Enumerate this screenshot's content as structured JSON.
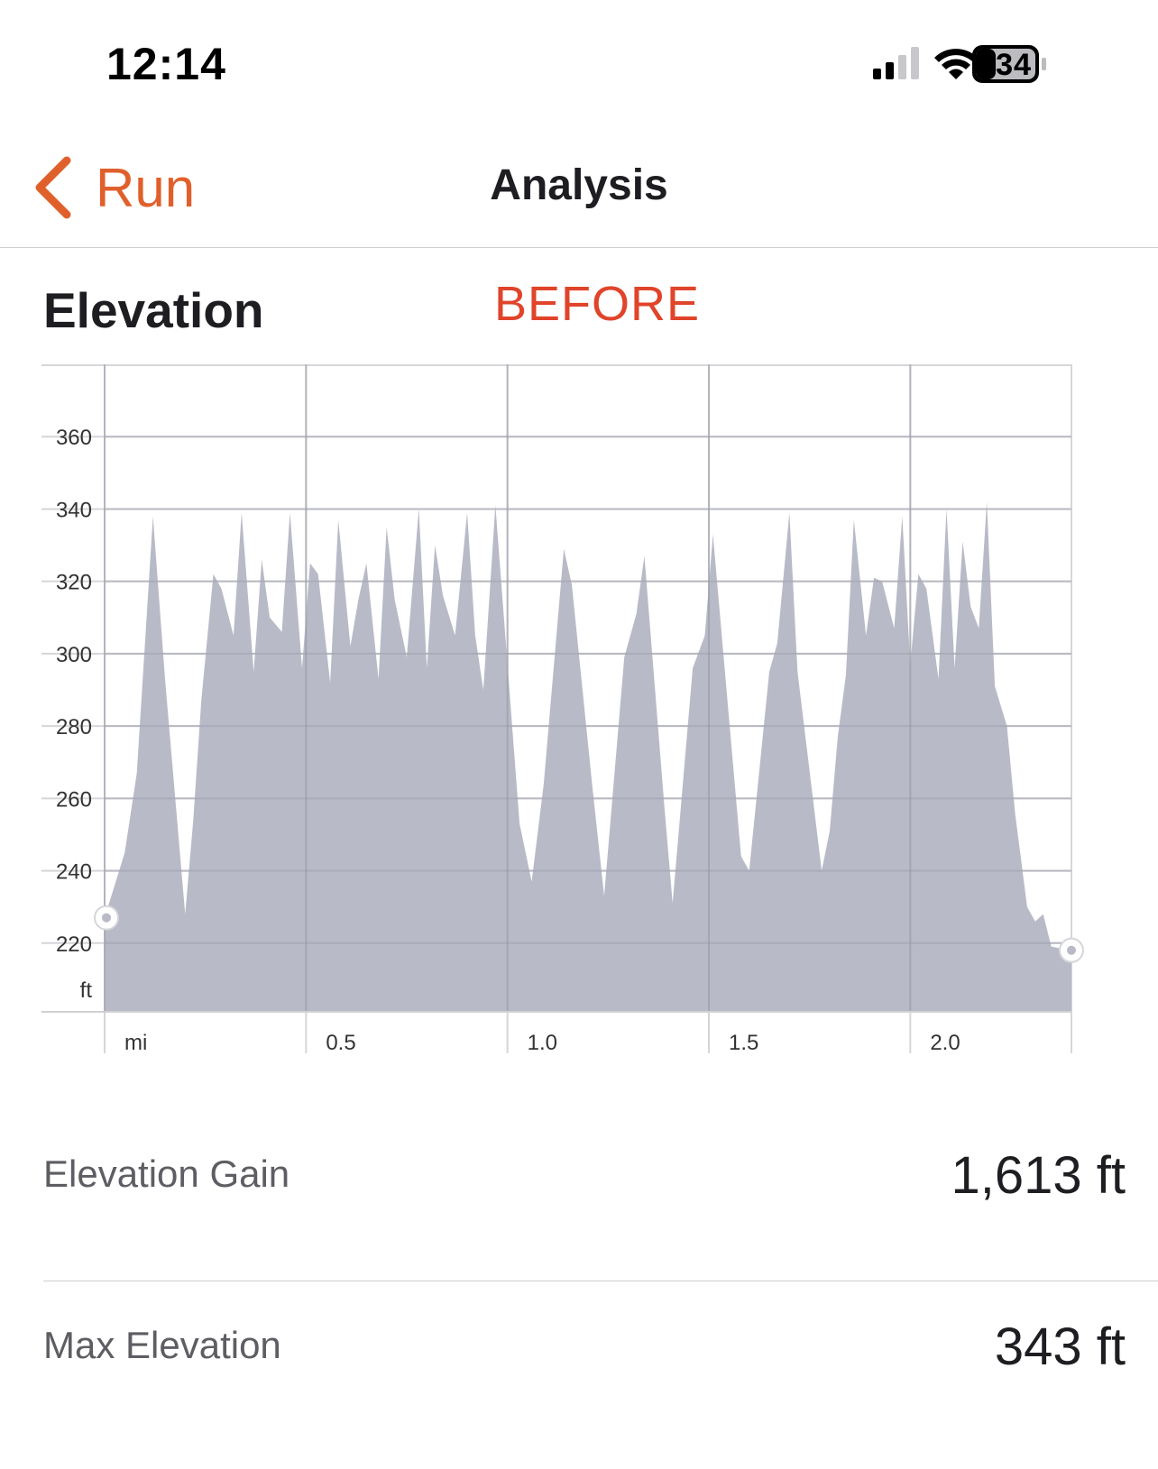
{
  "status_bar": {
    "time": "12:14",
    "battery": "34",
    "icons": [
      "signal-icon",
      "wifi-icon",
      "battery-icon"
    ]
  },
  "nav": {
    "back_label": "Run",
    "title": "Analysis",
    "accent_color": "#e0602c"
  },
  "section": {
    "title": "Elevation",
    "note": "BEFORE",
    "note_color": "#e0442a"
  },
  "chart_data": {
    "type": "area",
    "xunit": "mi",
    "yunit": "ft",
    "x_ticks": [
      "0.5",
      "1.0",
      "1.5",
      "2.0"
    ],
    "y_ticks": [
      "220",
      "240",
      "260",
      "280",
      "300",
      "320",
      "340",
      "360"
    ],
    "xlim": [
      0,
      2.4
    ],
    "ylim": [
      201,
      380
    ],
    "fill_color": "#b8bac7",
    "grid": true,
    "points": [
      [
        0.0,
        227
      ],
      [
        0.05,
        245
      ],
      [
        0.08,
        267
      ],
      [
        0.12,
        338
      ],
      [
        0.15,
        293
      ],
      [
        0.2,
        228
      ],
      [
        0.22,
        254
      ],
      [
        0.24,
        287
      ],
      [
        0.27,
        322
      ],
      [
        0.29,
        318
      ],
      [
        0.32,
        305
      ],
      [
        0.34,
        339
      ],
      [
        0.37,
        295
      ],
      [
        0.39,
        326
      ],
      [
        0.41,
        310
      ],
      [
        0.44,
        306
      ],
      [
        0.46,
        339
      ],
      [
        0.49,
        296
      ],
      [
        0.51,
        325
      ],
      [
        0.53,
        322
      ],
      [
        0.56,
        292
      ],
      [
        0.58,
        337
      ],
      [
        0.61,
        302
      ],
      [
        0.63,
        315
      ],
      [
        0.65,
        325
      ],
      [
        0.68,
        293
      ],
      [
        0.7,
        335
      ],
      [
        0.72,
        315
      ],
      [
        0.75,
        299
      ],
      [
        0.78,
        340
      ],
      [
        0.8,
        296
      ],
      [
        0.82,
        330
      ],
      [
        0.84,
        316
      ],
      [
        0.87,
        305
      ],
      [
        0.9,
        339
      ],
      [
        0.92,
        305
      ],
      [
        0.94,
        290
      ],
      [
        0.97,
        341
      ],
      [
        1.0,
        297
      ],
      [
        1.03,
        253
      ],
      [
        1.06,
        237
      ],
      [
        1.09,
        264
      ],
      [
        1.14,
        329
      ],
      [
        1.16,
        319
      ],
      [
        1.21,
        264
      ],
      [
        1.24,
        233
      ],
      [
        1.29,
        299
      ],
      [
        1.32,
        311
      ],
      [
        1.34,
        327
      ],
      [
        1.39,
        257
      ],
      [
        1.41,
        231
      ],
      [
        1.46,
        296
      ],
      [
        1.49,
        305
      ],
      [
        1.51,
        333
      ],
      [
        1.58,
        244
      ],
      [
        1.6,
        240
      ],
      [
        1.65,
        295
      ],
      [
        1.67,
        303
      ],
      [
        1.7,
        339
      ],
      [
        1.72,
        295
      ],
      [
        1.78,
        240
      ],
      [
        1.8,
        251
      ],
      [
        1.82,
        277
      ],
      [
        1.84,
        294
      ],
      [
        1.86,
        337
      ],
      [
        1.89,
        305
      ],
      [
        1.91,
        321
      ],
      [
        1.93,
        320
      ],
      [
        1.96,
        307
      ],
      [
        1.98,
        338
      ],
      [
        2.0,
        297
      ],
      [
        2.02,
        322
      ],
      [
        2.04,
        318
      ],
      [
        2.07,
        293
      ],
      [
        2.09,
        340
      ],
      [
        2.11,
        296
      ],
      [
        2.13,
        331
      ],
      [
        2.15,
        313
      ],
      [
        2.17,
        307
      ],
      [
        2.19,
        342
      ],
      [
        2.21,
        291
      ],
      [
        2.24,
        280
      ],
      [
        2.26,
        256
      ],
      [
        2.29,
        230
      ],
      [
        2.31,
        226
      ],
      [
        2.33,
        228
      ],
      [
        2.35,
        219
      ]
    ],
    "start_marker": [
      0.0,
      227
    ],
    "end_marker": [
      2.4,
      218
    ]
  },
  "stats": [
    {
      "label": "Elevation Gain",
      "value": "1,613 ft"
    },
    {
      "label": "Max Elevation",
      "value": "343 ft"
    }
  ]
}
